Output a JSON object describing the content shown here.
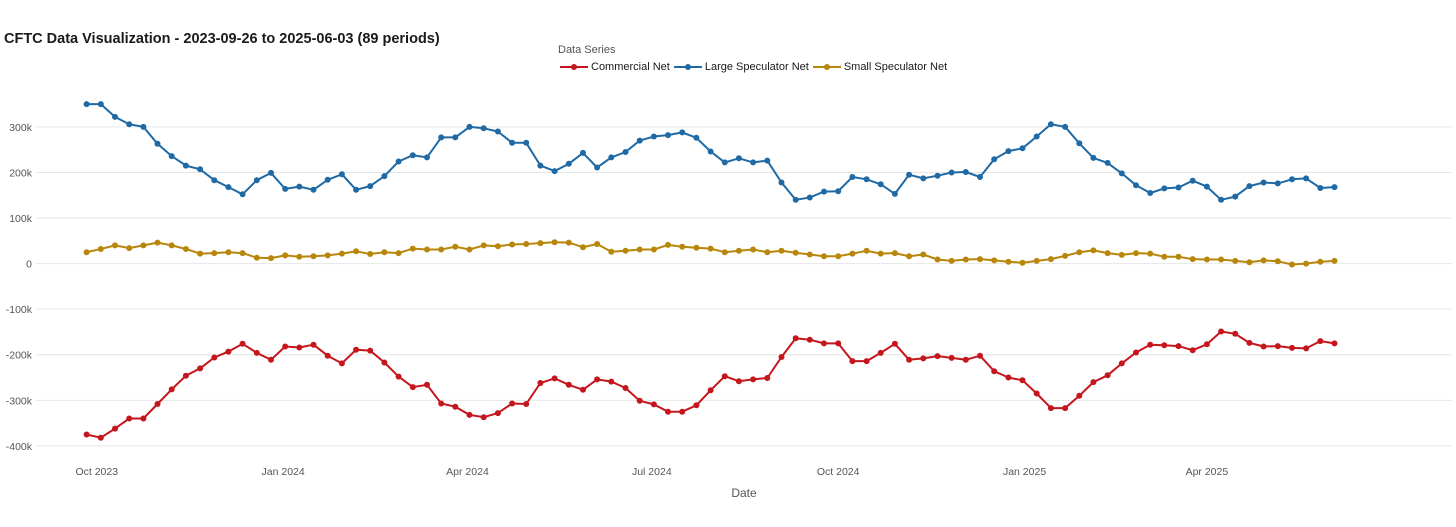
{
  "chart_data": {
    "type": "line",
    "title": "CFTC Data Visualization - 2023-09-26 to 2025-06-03 (89 periods)",
    "legend_title": "Data Series",
    "legend_position": "top-center",
    "xlabel": "Date",
    "ylabel": "",
    "grid": true,
    "x_start": "2023-09-26",
    "x_end": "2025-06-03",
    "x_range": [
      "2023-09-01",
      "2025-07-31"
    ],
    "ylim": [
      -420000,
      370000
    ],
    "x_ticks": [
      {
        "date": "2023-10-01",
        "label": "Oct 2023"
      },
      {
        "date": "2024-01-01",
        "label": "Jan 2024"
      },
      {
        "date": "2024-04-01",
        "label": "Apr 2024"
      },
      {
        "date": "2024-07-01",
        "label": "Jul 2024"
      },
      {
        "date": "2024-10-01",
        "label": "Oct 2024"
      },
      {
        "date": "2025-01-01",
        "label": "Jan 2025"
      },
      {
        "date": "2025-04-01",
        "label": "Apr 2025"
      }
    ],
    "y_ticks": [
      {
        "value": 300000,
        "label": "300k"
      },
      {
        "value": 200000,
        "label": "200k"
      },
      {
        "value": 100000,
        "label": "100k"
      },
      {
        "value": 0,
        "label": "0"
      },
      {
        "value": -100000,
        "label": "-100k"
      },
      {
        "value": -200000,
        "label": "-200k"
      },
      {
        "value": -300000,
        "label": "-300k"
      },
      {
        "value": -400000,
        "label": "-400k"
      }
    ],
    "series": [
      {
        "name": "Commercial Net",
        "color": "#c4161c",
        "values": [
          -375000,
          -382000,
          -362000,
          -340000,
          -340000,
          -308000,
          -276000,
          -246000,
          -230000,
          -206000,
          -193000,
          -176000,
          -196000,
          -211000,
          -182000,
          -184000,
          -178000,
          -202000,
          -219000,
          -189000,
          -191000,
          -217000,
          -248000,
          -271000,
          -266000,
          -307000,
          -314000,
          -332000,
          -337000,
          -328000,
          -307000,
          -308000,
          -262000,
          -252000,
          -266000,
          -277000,
          -254000,
          -259000,
          -273000,
          -301000,
          -309000,
          -325000,
          -325000,
          -311000,
          -278000,
          -247000,
          -258000,
          -254000,
          -251000,
          -205000,
          -164000,
          -167000,
          -175000,
          -175000,
          -214000,
          -214000,
          -196000,
          -176000,
          -211000,
          -208000,
          -203000,
          -207000,
          -211000,
          -202000,
          -236000,
          -250000,
          -256000,
          -285000,
          -317000,
          -317000,
          -290000,
          -260000,
          -245000,
          -219000,
          -195000,
          -178000,
          -179000,
          -181000,
          -190000,
          -177000,
          -149000,
          -154000,
          -174000,
          -182000,
          -181000,
          -185000,
          -186000,
          -170000,
          -175000
        ]
      },
      {
        "name": "Large Speculator Net",
        "color": "#1f6aa5",
        "values": [
          350000,
          350000,
          322000,
          306000,
          300000,
          263000,
          236000,
          215000,
          207000,
          183000,
          168000,
          152000,
          183000,
          199000,
          164000,
          169000,
          162000,
          184000,
          196000,
          162000,
          170000,
          192000,
          224000,
          238000,
          233000,
          277000,
          277000,
          300000,
          297000,
          290000,
          265000,
          265000,
          215000,
          203000,
          219000,
          243000,
          211000,
          233000,
          245000,
          270000,
          279000,
          282000,
          288000,
          276000,
          246000,
          222000,
          231000,
          222000,
          226000,
          178000,
          140000,
          145000,
          158000,
          159000,
          190000,
          185000,
          174000,
          153000,
          195000,
          187000,
          193000,
          200000,
          201000,
          190000,
          229000,
          247000,
          253000,
          279000,
          306000,
          300000,
          264000,
          232000,
          221000,
          198000,
          172000,
          155000,
          165000,
          167000,
          182000,
          169000,
          140000,
          147000,
          170000,
          178000,
          176000,
          185000,
          187000,
          166000,
          168000
        ]
      },
      {
        "name": "Small Speculator Net",
        "color": "#b8860b",
        "values": [
          25000,
          32000,
          40000,
          34000,
          40000,
          46000,
          40000,
          32000,
          22000,
          23000,
          25000,
          23000,
          13000,
          12000,
          18000,
          15000,
          16000,
          18000,
          22000,
          27000,
          21000,
          25000,
          23000,
          33000,
          31000,
          31000,
          37000,
          31000,
          40000,
          38000,
          42000,
          43000,
          45000,
          47000,
          46000,
          36000,
          43000,
          26000,
          28000,
          31000,
          31000,
          41000,
          37000,
          35000,
          33000,
          25000,
          28000,
          31000,
          25000,
          28000,
          24000,
          20000,
          16000,
          16000,
          22000,
          28000,
          22000,
          23000,
          16000,
          20000,
          9000,
          6000,
          9000,
          10000,
          7000,
          4000,
          2000,
          6000,
          10000,
          17000,
          25000,
          29000,
          23000,
          19000,
          23000,
          22000,
          15000,
          15000,
          10000,
          9000,
          9000,
          6000,
          3000,
          7000,
          5000,
          -2000,
          0,
          4000,
          6000
        ]
      }
    ]
  }
}
